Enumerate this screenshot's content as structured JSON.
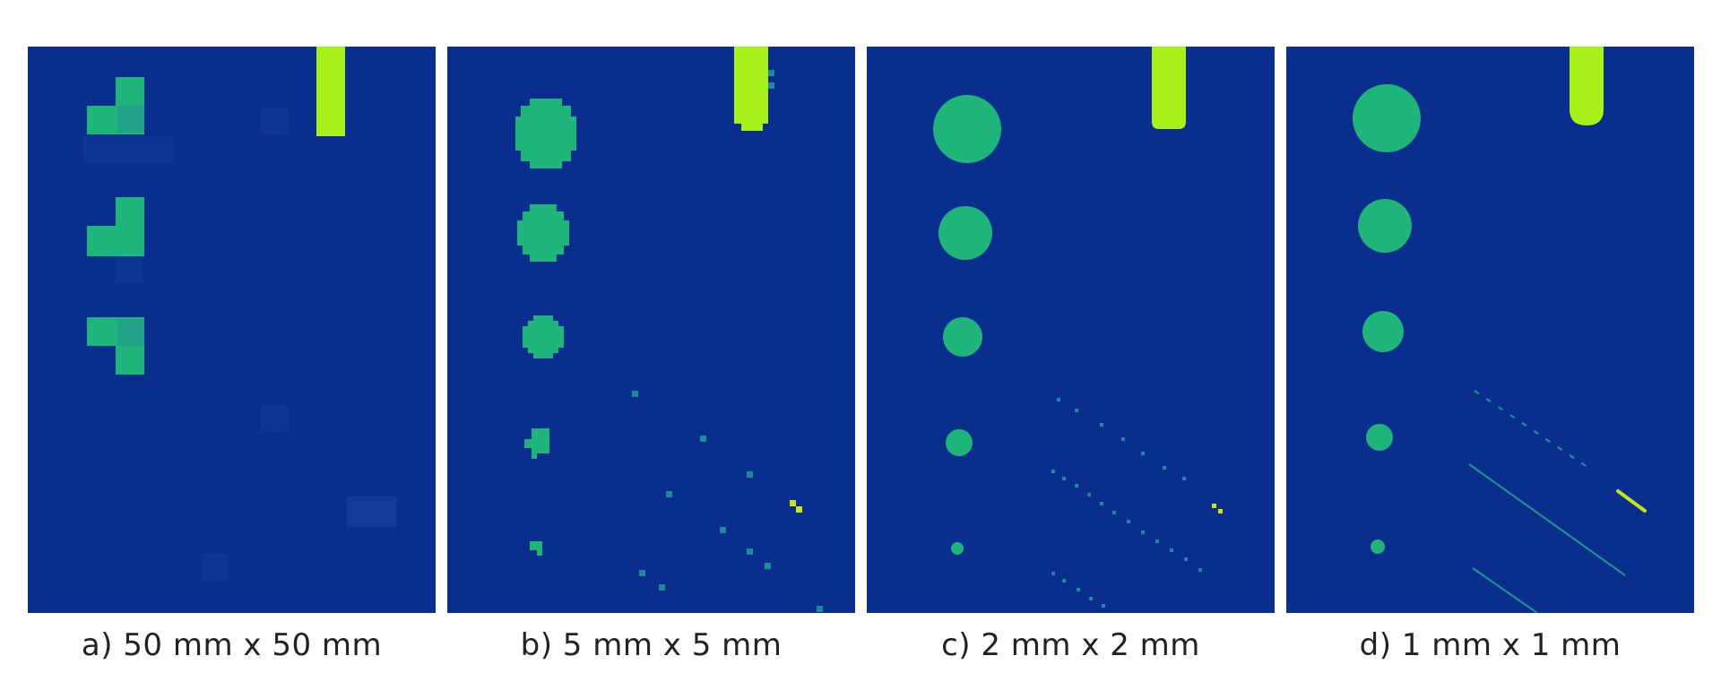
{
  "colors": {
    "background": "#0a2e8e",
    "feature": "#1fb47a",
    "probe": "#a8f01a",
    "caption": "#222222"
  },
  "panels": [
    {
      "caption": "a) 50 mm x 50 mm"
    },
    {
      "caption": "b) 5 mm x 5 mm"
    },
    {
      "caption": "c) 2 mm x 2 mm"
    },
    {
      "caption": "d) 1 mm x 1 mm"
    }
  ]
}
